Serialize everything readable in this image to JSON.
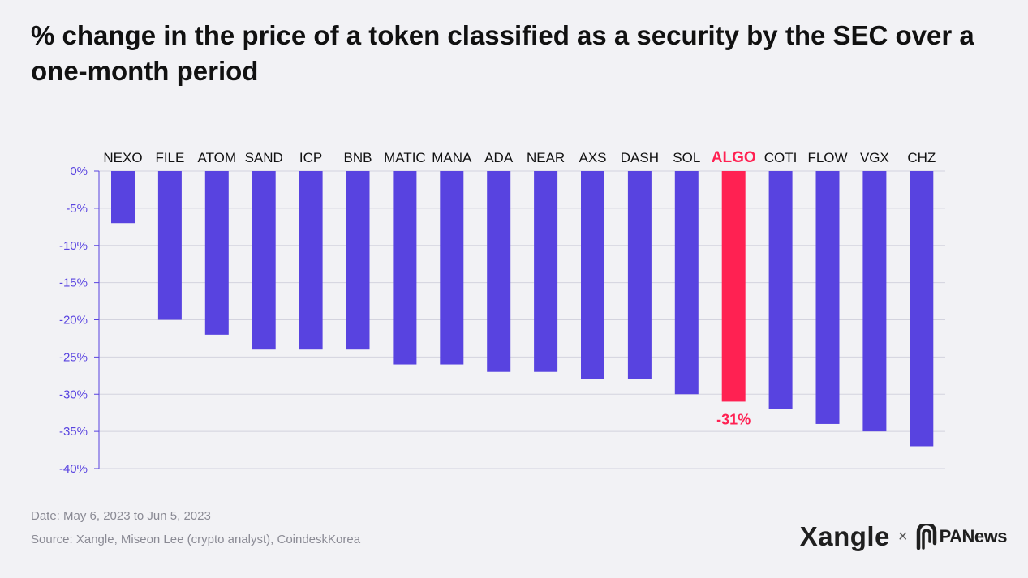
{
  "chart_data": {
    "type": "bar",
    "title": "% change in the price of a token classified as a security by the SEC over a one-month period",
    "categories": [
      "NEXO",
      "FILE",
      "ATOM",
      "SAND",
      "ICP",
      "BNB",
      "MATIC",
      "MANA",
      "ADA",
      "NEAR",
      "AXS",
      "DASH",
      "SOL",
      "ALGO",
      "COTI",
      "FLOW",
      "VGX",
      "CHZ"
    ],
    "values": [
      -7,
      -20,
      -22,
      -24,
      -24,
      -24,
      -26,
      -26,
      -27,
      -27,
      -28,
      -28,
      -30,
      -31,
      -32,
      -34,
      -35,
      -37
    ],
    "highlight": {
      "category": "ALGO",
      "label": "-31%"
    },
    "ylim": [
      -40,
      0
    ],
    "yticks": [
      0,
      -5,
      -10,
      -15,
      -20,
      -25,
      -30,
      -35,
      -40
    ],
    "ytick_labels": [
      "0%",
      "-5%",
      "-10%",
      "-15%",
      "-20%",
      "-25%",
      "-30%",
      "-35%",
      "-40%"
    ],
    "xlabel": "",
    "ylabel": "",
    "grid": true,
    "colors": {
      "bar": "#5843e0",
      "highlight": "#ff2152",
      "tick": "#5843e0",
      "grid": "#d3d3de"
    }
  },
  "footer": {
    "date": "Date: May 6, 2023 to Jun 5, 2023",
    "source": "Source: Xangle, Miseon Lee (crypto analyst), CoindeskKorea"
  },
  "logos": {
    "xangle": "Xangle",
    "times": "×",
    "panews": "PANews"
  }
}
